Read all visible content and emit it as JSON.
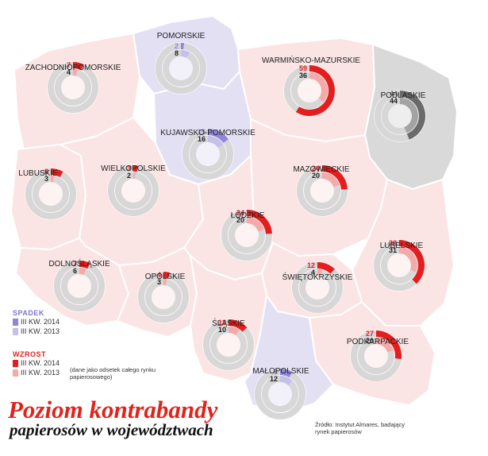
{
  "colors": {
    "decrease_2014": "#8f86d8",
    "decrease_2013": "#c5c0ea",
    "increase_2014": "#e41e1e",
    "increase_2013": "#f4aaaa",
    "podlaskie_2014": "#6a6a6a",
    "podlaskie_2013": "#a3a3a3",
    "ring_bg": "#d7d7d7",
    "region_default": "#fbe4e4",
    "region_decrease": "#e3e0f4",
    "region_podlaskie": "#d9d9d9"
  },
  "regions": [
    {
      "name": "POMORSKIE",
      "v2014": 2,
      "v2013": 8,
      "trend": "decrease"
    },
    {
      "name": "ZACHODNIOPOMORSKIE",
      "v2014": 7,
      "v2013": 4,
      "trend": "increase"
    },
    {
      "name": "WARMIŃSKO-MAZURSKIE",
      "v2014": 59,
      "v2013": 36,
      "trend": "increase"
    },
    {
      "name": "PODLASKIE",
      "v2014": 44,
      "v2013": 44,
      "trend": "neutral"
    },
    {
      "name": "KUJAWSKO-POMORSKIE",
      "v2014": 15,
      "v2013": 16,
      "trend": "decrease"
    },
    {
      "name": "LUBUSKIE",
      "v2014": 8,
      "v2013": 3,
      "trend": "increase"
    },
    {
      "name": "WIELKOPOLSKIE",
      "v2014": 3,
      "v2013": 2,
      "trend": "increase"
    },
    {
      "name": "MAZOWIECKIE",
      "v2014": 24,
      "v2013": 20,
      "trend": "increase"
    },
    {
      "name": "ŁÓDZKIE",
      "v2014": 24,
      "v2013": 20,
      "trend": "increase"
    },
    {
      "name": "LUBELSKIE",
      "v2014": 38,
      "v2013": 31,
      "trend": "increase"
    },
    {
      "name": "DOLNOŚLĄSKIE",
      "v2014": 7,
      "v2013": 6,
      "trend": "increase"
    },
    {
      "name": "OPOLSKIE",
      "v2014": 4,
      "v2013": 3,
      "trend": "increase"
    },
    {
      "name": "ŚWIĘTOKRZYSKIE",
      "v2014": 12,
      "v2013": 4,
      "trend": "increase"
    },
    {
      "name": "ŚLĄSKIE",
      "v2014": 13,
      "v2013": 10,
      "trend": "increase"
    },
    {
      "name": "PODKARPACKIE",
      "v2014": 27,
      "v2013": 20,
      "trend": "increase"
    },
    {
      "name": "MAŁOPOLSKIE",
      "v2014": 8,
      "v2013": 12,
      "trend": "decrease"
    }
  ],
  "legend": {
    "decrease_title": "SPADEK",
    "increase_title": "WZROST",
    "label_2014": "III KW. 2014",
    "label_2013": "III KW. 2013",
    "note": "(dane jako odsetek całego rynku papierosowego)"
  },
  "title": {
    "line1": "Poziom kontrabandy",
    "line2": "papierosów w województwach"
  },
  "source": "Źródło: Instytut Almares, badający rynek papierosów"
}
